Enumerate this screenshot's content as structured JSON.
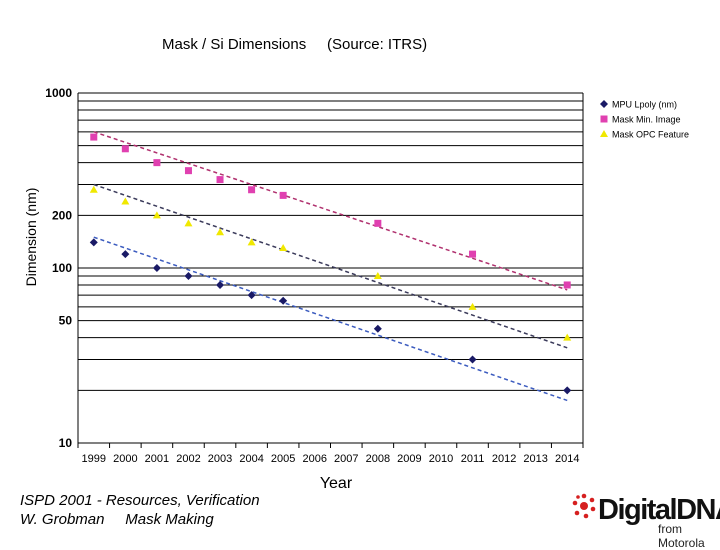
{
  "title": "Mask / Si Dimensions     (Source: ITRS)",
  "footer": {
    "line1": "ISPD 2001 - Resources, Verification",
    "line2": "W. Grobman     Mask Making"
  },
  "logo": {
    "wordmark": "DigitalDNA",
    "tagline": "from Motorola"
  },
  "chart_data": {
    "type": "scatter",
    "xlabel": "Year",
    "ylabel": "Dimension (nm)",
    "yscale": "log",
    "ylim": [
      10,
      1000
    ],
    "xlim": [
      1998.5,
      2014.5
    ],
    "y_tick_labels": [
      "1000",
      "200",
      "100",
      "50",
      "10"
    ],
    "y_tick_values": [
      1000,
      200,
      100,
      50,
      10
    ],
    "categories": [
      "1999",
      "2000",
      "2001",
      "2002",
      "2003",
      "2004",
      "2005",
      "2006",
      "2007",
      "2008",
      "2009",
      "2010",
      "2011",
      "2012",
      "2013",
      "2014"
    ],
    "legend_position": "top-right",
    "series": [
      {
        "name": "MPU Lpoly (nm)",
        "marker": "diamond",
        "color": "#1a1a66",
        "trend_color": "#3b5bbf",
        "x": [
          1999,
          2000,
          2001,
          2002,
          2003,
          2004,
          2005,
          2008,
          2011,
          2014
        ],
        "y": [
          140,
          120,
          100,
          90,
          80,
          70,
          65,
          45,
          30,
          20
        ],
        "trend": [
          [
            1999,
            150
          ],
          [
            2014,
            17.5
          ]
        ]
      },
      {
        "name": "Mask Min. Image",
        "marker": "square",
        "color": "#e040b0",
        "trend_color": "#b0306e",
        "x": [
          1999,
          2000,
          2001,
          2002,
          2003,
          2004,
          2005,
          2008,
          2011,
          2014
        ],
        "y": [
          560,
          480,
          400,
          360,
          320,
          280,
          260,
          180,
          120,
          80
        ],
        "trend": [
          [
            1999,
            600
          ],
          [
            2014,
            75
          ]
        ]
      },
      {
        "name": "Mask OPC Feature",
        "marker": "triangle",
        "color": "#f0e800",
        "trend_color": "#3a3a5a",
        "x": [
          1999,
          2000,
          2001,
          2002,
          2003,
          2004,
          2005,
          2008,
          2011,
          2014
        ],
        "y": [
          280,
          240,
          200,
          180,
          160,
          140,
          130,
          90,
          60,
          40
        ],
        "trend": [
          [
            1999,
            300
          ],
          [
            2014,
            35
          ]
        ]
      }
    ]
  }
}
